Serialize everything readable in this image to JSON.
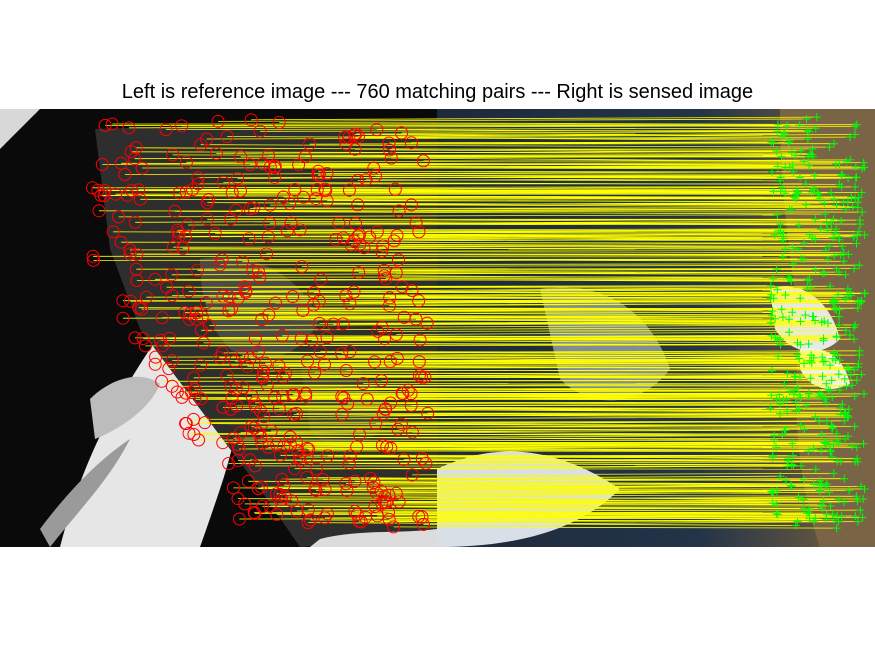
{
  "figure": {
    "title": "Left is reference image --- 760 matching pairs --- Right is sensed image",
    "match_line_color": "#ffff00",
    "reference_marker": "red-circle",
    "reference_marker_color": "#ff0000",
    "sensed_marker": "green-plus",
    "sensed_marker_color": "#00ff00"
  }
}
